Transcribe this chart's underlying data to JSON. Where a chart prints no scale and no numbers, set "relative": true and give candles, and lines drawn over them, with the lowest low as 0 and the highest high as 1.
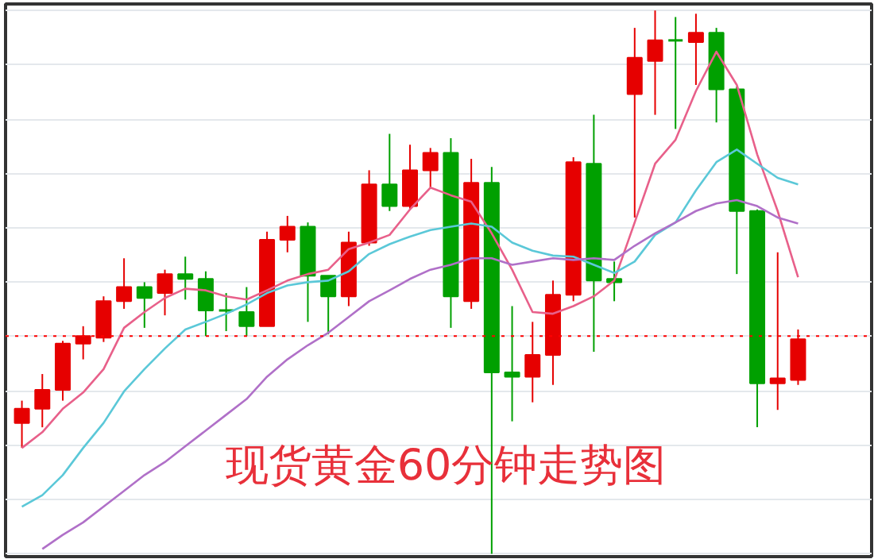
{
  "chart_data": {
    "type": "candlestick",
    "title": "现货黄金60分钟走势图",
    "relative": true,
    "grid": "y",
    "categories": [
      null,
      null,
      null,
      null,
      null,
      null,
      null,
      null,
      null,
      null,
      null,
      null,
      null,
      null,
      null,
      null,
      null,
      null,
      null,
      null,
      null,
      null,
      null,
      null,
      null,
      null,
      null,
      null,
      null,
      null,
      null,
      null,
      null,
      null,
      null,
      null,
      null,
      null,
      null
    ],
    "ohlc": [
      [
        0.241,
        0.282,
        0.195,
        0.267
      ],
      [
        0.267,
        0.331,
        0.233,
        0.302
      ],
      [
        0.302,
        0.392,
        0.282,
        0.387
      ],
      [
        0.387,
        0.419,
        0.358,
        0.401
      ],
      [
        0.398,
        0.474,
        0.39,
        0.465
      ],
      [
        0.465,
        0.544,
        0.451,
        0.491
      ],
      [
        0.491,
        0.5,
        0.416,
        0.471
      ],
      [
        0.48,
        0.523,
        0.439,
        0.515
      ],
      [
        0.515,
        0.547,
        0.468,
        0.506
      ],
      [
        0.506,
        0.52,
        0.401,
        0.448
      ],
      [
        0.448,
        0.48,
        0.41,
        0.445
      ],
      [
        0.445,
        0.491,
        0.401,
        0.419
      ],
      [
        0.419,
        0.593,
        0.419,
        0.578
      ],
      [
        0.578,
        0.622,
        0.555,
        0.602
      ],
      [
        0.602,
        0.61,
        0.427,
        0.512
      ],
      [
        0.512,
        0.512,
        0.404,
        0.474
      ],
      [
        0.474,
        0.593,
        0.456,
        0.573
      ],
      [
        0.573,
        0.706,
        0.567,
        0.68
      ],
      [
        0.68,
        0.773,
        0.631,
        0.64
      ],
      [
        0.64,
        0.753,
        0.634,
        0.706
      ],
      [
        0.706,
        0.747,
        0.674,
        0.738
      ],
      [
        0.738,
        0.765,
        0.416,
        0.474
      ],
      [
        0.465,
        0.727,
        0.451,
        0.683
      ],
      [
        0.683,
        0.712,
        0.0,
        0.334
      ],
      [
        0.334,
        0.456,
        0.244,
        0.326
      ],
      [
        0.326,
        0.427,
        0.279,
        0.366
      ],
      [
        0.366,
        0.503,
        0.311,
        0.477
      ],
      [
        0.477,
        0.73,
        0.465,
        0.721
      ],
      [
        0.718,
        0.808,
        0.372,
        0.503
      ],
      [
        0.506,
        0.538,
        0.465,
        0.5
      ],
      [
        0.846,
        0.968,
        0.619,
        0.913
      ],
      [
        0.907,
        1.0,
        0.808,
        0.945
      ],
      [
        0.945,
        0.988,
        0.782,
        0.942
      ],
      [
        0.942,
        0.994,
        0.863,
        0.959
      ],
      [
        0.959,
        0.968,
        0.794,
        0.855
      ],
      [
        0.855,
        0.86,
        0.515,
        0.631
      ],
      [
        0.631,
        0.634,
        0.233,
        0.314
      ],
      [
        0.314,
        0.555,
        0.265,
        0.323
      ],
      [
        0.32,
        0.413,
        0.311,
        0.395
      ]
    ],
    "colors": [
      "#e60000",
      "#e60000",
      "#e60000",
      "#e60000",
      "#e60000",
      "#e60000",
      "#00a000",
      "#e60000",
      "#00a000",
      "#00a000",
      "#00a000",
      "#00a000",
      "#e60000",
      "#e60000",
      "#00a000",
      "#00a000",
      "#e60000",
      "#e60000",
      "#00a000",
      "#e60000",
      "#e60000",
      "#00a000",
      "#e60000",
      "#00a000",
      "#00a000",
      "#e60000",
      "#e60000",
      "#e60000",
      "#00a000",
      "#00a000",
      "#e60000",
      "#e60000",
      "#00a000",
      "#e60000",
      "#00a000",
      "#00a000",
      "#00a000",
      "#e60000",
      "#e60000"
    ],
    "series": [
      {
        "type": "line",
        "color": "#e8608a",
        "values": [
          0.195,
          0.224,
          0.267,
          0.297,
          0.34,
          0.416,
          0.445,
          0.471,
          0.488,
          0.485,
          0.474,
          0.468,
          0.485,
          0.503,
          0.515,
          0.523,
          0.561,
          0.573,
          0.587,
          0.634,
          0.674,
          0.66,
          0.648,
          0.59,
          0.523,
          0.445,
          0.442,
          0.456,
          0.474,
          0.503,
          0.61,
          0.718,
          0.762,
          0.852,
          0.924,
          0.863,
          0.735,
          0.631,
          0.509
        ]
      },
      {
        "type": "line",
        "color": "#5bc8d8",
        "values": [
          0.087,
          0.108,
          0.145,
          0.195,
          0.241,
          0.299,
          0.34,
          0.378,
          0.413,
          0.427,
          0.442,
          0.459,
          0.48,
          0.494,
          0.5,
          0.503,
          0.52,
          0.552,
          0.57,
          0.584,
          0.596,
          0.602,
          0.608,
          0.602,
          0.573,
          0.558,
          0.549,
          0.547,
          0.532,
          0.517,
          0.538,
          0.587,
          0.61,
          0.669,
          0.721,
          0.744,
          0.718,
          0.692,
          0.68
        ]
      },
      {
        "type": "line",
        "color": "#b070c8",
        "values": [
          null,
          0.009,
          0.035,
          0.058,
          0.087,
          0.116,
          0.145,
          0.169,
          0.198,
          0.227,
          0.256,
          0.285,
          0.326,
          0.358,
          0.384,
          0.407,
          0.436,
          0.465,
          0.485,
          0.506,
          0.523,
          0.532,
          0.544,
          0.544,
          0.532,
          0.538,
          0.544,
          0.541,
          0.544,
          0.541,
          0.567,
          0.59,
          0.61,
          0.631,
          0.645,
          0.651,
          0.64,
          0.619,
          0.608
        ]
      }
    ],
    "ref_lines": [
      {
        "axis": "y",
        "value": 0.401,
        "color": "#ff0000",
        "line_style": "dotted"
      }
    ]
  }
}
